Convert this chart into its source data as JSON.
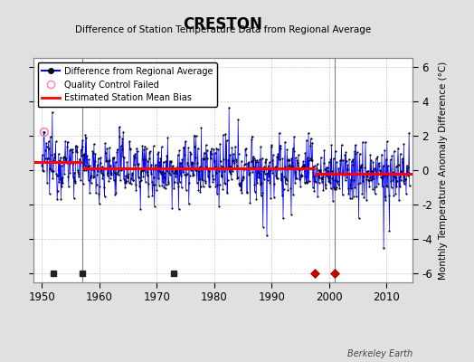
{
  "title": "CRESTON",
  "subtitle": "Difference of Station Temperature Data from Regional Average",
  "ylabel": "Monthly Temperature Anomaly Difference (°C)",
  "xlabel_years": [
    1950,
    1960,
    1970,
    1980,
    1990,
    2000,
    2010
  ],
  "ylim": [
    -6.5,
    6.5
  ],
  "yticks": [
    -6,
    -4,
    -2,
    0,
    2,
    4,
    6
  ],
  "xlim": [
    1948.5,
    2014.5
  ],
  "background_color": "#e0e0e0",
  "plot_bg_color": "#ffffff",
  "grid_color": "#b0b0b0",
  "line_color": "#0000ff",
  "dot_color": "#000000",
  "bias_color": "#ff0000",
  "watermark": "Berkeley Earth",
  "station_moves": [
    1997.5,
    2001.0
  ],
  "empirical_breaks": [
    1952.0,
    1957.0,
    1973.0
  ],
  "qc_fail_x": 1950.42,
  "qc_fail_y": 2.2,
  "vertical_lines": [
    1957.0,
    2001.0
  ],
  "bias_segments": [
    {
      "x": [
        1948.5,
        1957.0
      ],
      "y": [
        0.45,
        0.45
      ]
    },
    {
      "x": [
        1957.0,
        1997.5
      ],
      "y": [
        0.1,
        0.1
      ]
    },
    {
      "x": [
        1997.5,
        2014.5
      ],
      "y": [
        -0.2,
        -0.2
      ]
    }
  ],
  "seed": 12345
}
